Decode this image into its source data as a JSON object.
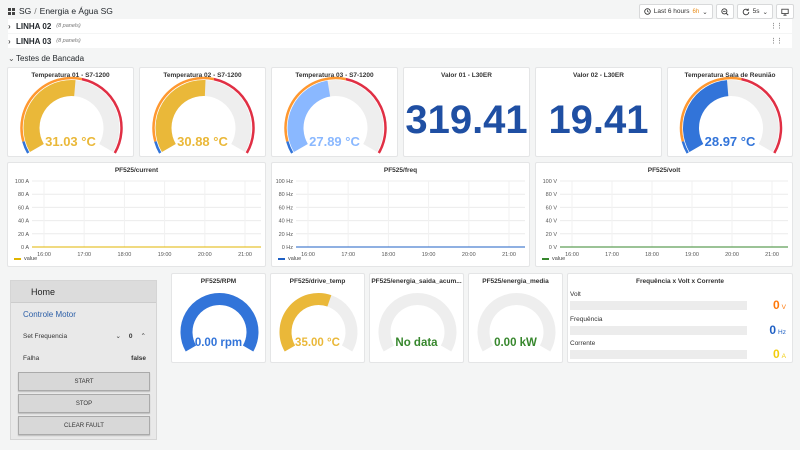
{
  "header": {
    "folder": "SG",
    "dashboard": "Energia e Água SG"
  },
  "toolbar": {
    "time_range": "Last 6 hours",
    "time_zoom": "6h",
    "refresh_interval": "5s"
  },
  "rows": [
    {
      "title": "LINHA 02",
      "panels": "(8 panels)"
    },
    {
      "title": "LINHA 03",
      "panels": "(8 panels)"
    },
    {
      "title": "Testes de Bancada"
    }
  ],
  "gauges": [
    {
      "title": "Temperatura 01 - S7-1200",
      "value": "31.03 °C",
      "fill": 0.52,
      "color": "#eab839"
    },
    {
      "title": "Temperatura 02 - S7-1200",
      "value": "30.88 °C",
      "fill": 0.51,
      "color": "#eab839"
    },
    {
      "title": "Temperatura 03 - S7-1200",
      "value": "27.89 °C",
      "fill": 0.46,
      "color": "#8ab8ff"
    }
  ],
  "stats": [
    {
      "title": "Valor 01 - L30ER",
      "value": "319.41"
    },
    {
      "title": "Valor 02 - L30ER",
      "value": "19.41"
    }
  ],
  "sala_gauge": {
    "title": "Temperatura Sala de Reunião",
    "value": "28.97 °C",
    "fill": 0.48,
    "color": "#3274d9"
  },
  "timeseries": [
    {
      "title": "PF525/current",
      "unit": "A",
      "yticks": [
        "100 A",
        "80 A",
        "60 A",
        "40 A",
        "20 A",
        "0 A"
      ],
      "legend": "value",
      "color": "#e0b400"
    },
    {
      "title": "PF525/freq",
      "unit": "Hz",
      "yticks": [
        "100 Hz",
        "80 Hz",
        "60 Hz",
        "40 Hz",
        "20 Hz",
        "0 Hz"
      ],
      "legend": "value",
      "color": "#1f60c4"
    },
    {
      "title": "PF525/volt",
      "unit": "V",
      "yticks": [
        "100 V",
        "80 V",
        "60 V",
        "40 V",
        "20 V",
        "0 V"
      ],
      "legend": "value",
      "color": "#37872d"
    }
  ],
  "xticks": [
    "16:00",
    "17:00",
    "18:00",
    "19:00",
    "20:00",
    "21:00"
  ],
  "home": {
    "title": "Home",
    "subtitle": "Controle Motor",
    "set_freq_label": "Set Frequencia",
    "set_freq_value": "0",
    "falha_label": "Falha",
    "falha_value": "false",
    "buttons": [
      "START",
      "STOP",
      "CLEAR FAULT"
    ]
  },
  "bottom_gauges": [
    {
      "title": "PF525/RPM",
      "value": "0.00 rpm",
      "fill": 1.0,
      "color": "#3274d9",
      "textcolor": "#3274d9"
    },
    {
      "title": "PF525/drive_temp",
      "value": "35.00 °C",
      "fill": 0.58,
      "color": "#eab839",
      "textcolor": "#eab839"
    },
    {
      "title": "PF525/energia_saida_acum...",
      "value": "No data",
      "fill": 0,
      "color": "#37872d",
      "textcolor": "#37872d"
    },
    {
      "title": "PF525/energia_media",
      "value": "0.00 kW",
      "fill": 0,
      "color": "#37872d",
      "textcolor": "#37872d"
    }
  ],
  "freq_panel": {
    "title": "Frequência x Volt x Corrente",
    "rows": [
      {
        "label": "Volt",
        "value": "0",
        "unit": "V",
        "color": "#ff780a"
      },
      {
        "label": "Frequência",
        "value": "0",
        "unit": "Hz",
        "color": "#1f60c4"
      },
      {
        "label": "Corrente",
        "value": "0",
        "unit": "A",
        "color": "#f2cc0c"
      }
    ]
  }
}
